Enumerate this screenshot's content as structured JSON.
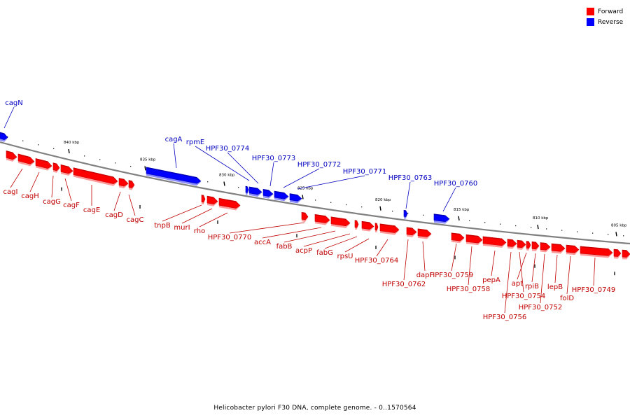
{
  "legend": [
    {
      "label": "Forward",
      "color": "#ff0000"
    },
    {
      "label": "Reverse",
      "color": "#0000ff"
    }
  ],
  "caption": "Helicobacter pylori F30 DNA, complete genome. - 0..1570564",
  "colors": {
    "forward": "#ff0000",
    "forward_dark": "#c80000",
    "forward_shadow": "#ff9a9a",
    "reverse": "#0000ff",
    "reverse_dark": "#0000b4",
    "reverse_shadow": "#8a8aff",
    "backbone": "#808080",
    "label_forward": "#c00000",
    "label_reverse": "#0000c0"
  },
  "scale_labels": [
    "840 kbp",
    "835 kbp",
    "830 kbp",
    "825 kbp",
    "820 kbp",
    "815 kbp",
    "810 kbp",
    "805 kbp"
  ],
  "reverse_genes": [
    "cagN",
    "cagA",
    "rpmE",
    "HPF30_0774",
    "HPF30_0773",
    "HPF30_0772",
    "HPF30_0771",
    "HPF30_0763",
    "HPF30_0760"
  ],
  "forward_genes": [
    "cagI",
    "cagH",
    "cagG",
    "cagF",
    "cagE",
    "cagD",
    "cagC",
    "tnpB",
    "murI",
    "rho",
    "HPF30_0770",
    "accA",
    "fabB",
    "acpP",
    "fabG",
    "rpsU",
    "HPF30_0764",
    "HPF30_0762",
    "dapF",
    "HPF30_0759",
    "HPF30_0758",
    "pepA",
    "HPF30_0756",
    "HPF30_0754",
    "apt",
    "rpiB",
    "HPF30_0752",
    "lepB",
    "folD",
    "HPF30_0749"
  ]
}
